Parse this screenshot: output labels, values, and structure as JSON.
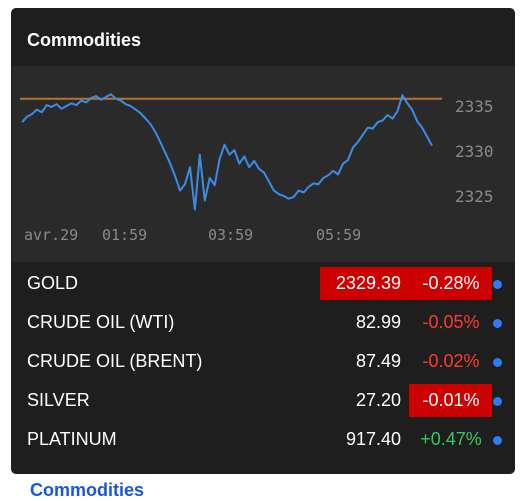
{
  "widget": {
    "title": "Commodities"
  },
  "chart_data": {
    "type": "line",
    "x_tick_labels": [
      "avr.29",
      "01:59",
      "03:59",
      "05:59"
    ],
    "y_tick_labels": [
      "2335",
      "2330",
      "2325"
    ],
    "ylim": [
      2322,
      2338
    ],
    "reference_line": 2335.8,
    "series": [
      {
        "values": [
          2333.2,
          2333.8,
          2334.1,
          2334.6,
          2334.3,
          2335.1,
          2334.9,
          2335.2,
          2334.7,
          2335.0,
          2335.3,
          2335.1,
          2335.6,
          2335.4,
          2335.9,
          2336.1,
          2335.7,
          2336.0,
          2336.3,
          2335.8,
          2335.6,
          2335.2,
          2335.0,
          2334.6,
          2334.2,
          2333.6,
          2333.0,
          2332.1,
          2331.0,
          2329.8,
          2328.6,
          2327.2,
          2325.6,
          2326.3,
          2328.2,
          2323.5,
          2329.6,
          2324.5,
          2327.0,
          2326.2,
          2329.1,
          2330.7,
          2329.6,
          2330.1,
          2328.6,
          2329.4,
          2328.2,
          2328.9,
          2328.0,
          2327.6,
          2326.6,
          2325.6,
          2325.2,
          2325.0,
          2324.7,
          2324.9,
          2325.6,
          2325.4,
          2326.0,
          2326.4,
          2326.3,
          2327.0,
          2327.3,
          2327.8,
          2327.4,
          2328.6,
          2329.0,
          2330.4,
          2331.0,
          2331.8,
          2332.6,
          2332.5,
          2333.2,
          2333.4,
          2334.0,
          2333.6,
          2334.4,
          2336.2,
          2335.3,
          2334.6,
          2333.3,
          2332.6,
          2331.6,
          2330.6
        ]
      }
    ]
  },
  "rows": [
    {
      "name": "GOLD",
      "price": "2329.39",
      "change": "-0.28%",
      "direction": "down",
      "highlight_price": true,
      "highlight_change": true
    },
    {
      "name": "CRUDE OIL (WTI)",
      "price": "82.99",
      "change": "-0.05%",
      "direction": "down",
      "highlight_price": false,
      "highlight_change": false
    },
    {
      "name": "CRUDE OIL (BRENT)",
      "price": "87.49",
      "change": "-0.02%",
      "direction": "down",
      "highlight_price": false,
      "highlight_change": false
    },
    {
      "name": "SILVER",
      "price": "27.20",
      "change": "-0.01%",
      "direction": "down",
      "highlight_price": false,
      "highlight_change": true
    },
    {
      "name": "PLATINUM",
      "price": "917.40",
      "change": "+0.47%",
      "direction": "up",
      "highlight_price": false,
      "highlight_change": false
    }
  ],
  "colors": {
    "line": "#3c8ce7",
    "reference": "#b8722c",
    "down": "#ff3b30",
    "up": "#35c759",
    "highlight": "#cc0000",
    "dot": "#2f7bf2"
  },
  "footer": {
    "partial_link": "Commodities"
  }
}
